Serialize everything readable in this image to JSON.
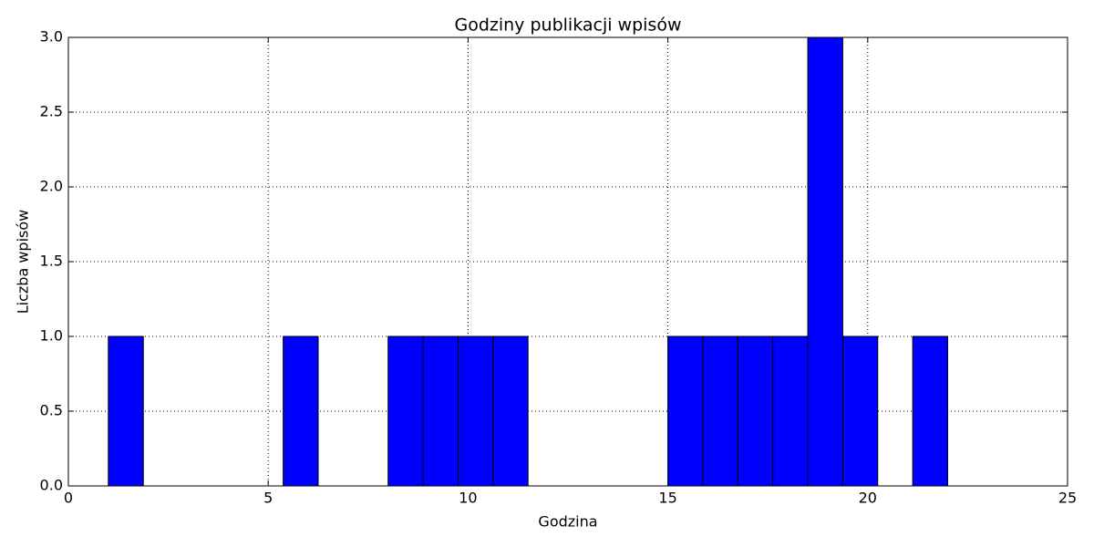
{
  "chart_data": {
    "type": "histogram",
    "title": "Godziny publikacji wpisów",
    "xlabel": "Godzina",
    "ylabel": "Liczba wpisów",
    "bins": [
      1,
      1.875,
      2.75,
      3.625,
      4.5,
      5.375,
      6.25,
      7.125,
      8,
      8.875,
      9.75,
      10.625,
      11.5,
      12.375,
      13.25,
      14.125,
      15,
      15.875,
      16.75,
      17.625,
      18.5,
      19.375,
      20.25,
      21.125,
      22
    ],
    "values": [
      1,
      0,
      0,
      0,
      0,
      1,
      0,
      0,
      1,
      1,
      1,
      1,
      0,
      0,
      0,
      0,
      1,
      1,
      1,
      1,
      3,
      1,
      0,
      1
    ],
    "color": "#0000ff",
    "xlim": [
      0,
      25
    ],
    "xticks": [
      0,
      5,
      10,
      15,
      20,
      25
    ],
    "ylim": [
      0,
      3
    ],
    "yticks": [
      {
        "value": 0,
        "label": "0.0"
      },
      0.5,
      {
        "value": 1,
        "label": "1.0"
      },
      1.5,
      {
        "value": 2,
        "label": "2.0"
      },
      2.5,
      {
        "value": 3,
        "label": "3.0"
      }
    ],
    "grid": true
  }
}
